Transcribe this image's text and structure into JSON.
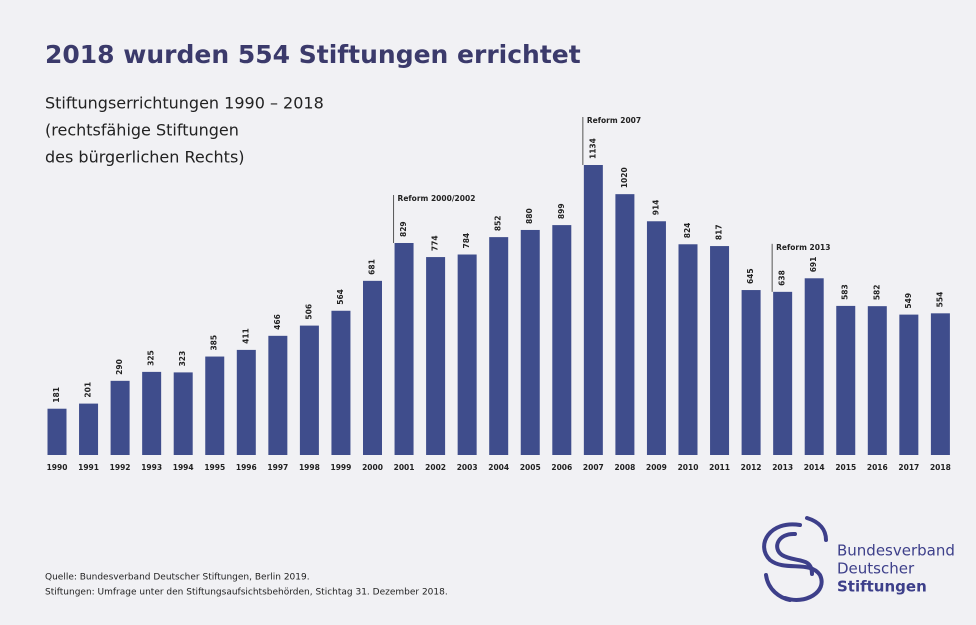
{
  "chart_data": {
    "type": "bar",
    "title": "2018 wurden 554 Stiftungen errichtet",
    "subtitle": [
      "Stiftungserrichtungen 1990 – 2018",
      "(rechtsfähige Stiftungen",
      "des bürgerlichen Rechts)"
    ],
    "categories": [
      "1990",
      "1991",
      "1992",
      "1993",
      "1994",
      "1995",
      "1996",
      "1997",
      "1998",
      "1999",
      "2000",
      "2001",
      "2002",
      "2003",
      "2004",
      "2005",
      "2006",
      "2007",
      "2008",
      "2009",
      "2010",
      "2011",
      "2012",
      "2013",
      "2014",
      "2015",
      "2016",
      "2017",
      "2018"
    ],
    "values": [
      181,
      201,
      290,
      325,
      323,
      385,
      411,
      466,
      506,
      564,
      681,
      829,
      774,
      784,
      852,
      880,
      899,
      1134,
      1020,
      914,
      824,
      817,
      645,
      638,
      691,
      583,
      582,
      549,
      554
    ],
    "color": "#3f4d8c",
    "annotations": [
      {
        "text": "Reform 2000/2002",
        "x": "2001"
      },
      {
        "text": "Reform 2007",
        "x": "2007"
      },
      {
        "text": "Reform 2013",
        "x": "2013"
      }
    ],
    "source": [
      "Quelle: Bundesverband Deutscher Stiftungen, Berlin 2019.",
      "Stiftungen: Umfrage unter den Stiftungsaufsichtsbehörden, Stichtag 31. Dezember 2018."
    ],
    "logo": [
      "Bundesverband",
      "Deutscher",
      "Stiftungen"
    ]
  }
}
